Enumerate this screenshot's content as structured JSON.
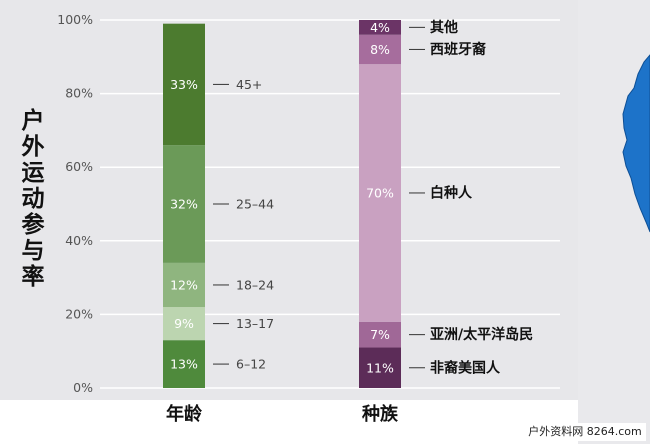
{
  "chart_data": {
    "type": "bar",
    "stacked": true,
    "normalized": true,
    "ylabel": "户外运动参与率",
    "yticks": [
      "0%",
      "20%",
      "40%",
      "60%",
      "80%",
      "100%"
    ],
    "ylim": [
      0,
      100
    ],
    "grid": true,
    "bars": [
      {
        "category": "年龄",
        "segments": [
          {
            "label": "6–12",
            "value": 13,
            "value_label": "13%",
            "color": "#4f8a3c"
          },
          {
            "label": "13–17",
            "value": 9,
            "value_label": "9%",
            "color": "#bcd5b0"
          },
          {
            "label": "18–24",
            "value": 12,
            "value_label": "12%",
            "color": "#8fb57f"
          },
          {
            "label": "25–44",
            "value": 32,
            "value_label": "32%",
            "color": "#6b9a58"
          },
          {
            "label": "45+",
            "value": 33,
            "value_label": "33%",
            "color": "#4c7b2f"
          }
        ]
      },
      {
        "category": "种族",
        "segments": [
          {
            "label": "非裔美国人",
            "value": 11,
            "value_label": "11%",
            "color": "#5c2c58"
          },
          {
            "label": "亚洲/太平洋岛民",
            "value": 7,
            "value_label": "7%",
            "color": "#a06897"
          },
          {
            "label": "白种人",
            "value": 70,
            "value_label": "70%",
            "color": "#c9a1c1"
          },
          {
            "label": "西班牙裔",
            "value": 8,
            "value_label": "8%",
            "color": "#a66d9d"
          },
          {
            "label": "其他",
            "value": 4,
            "value_label": "4%",
            "color": "#6b3466"
          }
        ]
      }
    ]
  },
  "colors": {
    "plot_background": "#e7e7ea",
    "gridline": "#ffffff",
    "tick_text": "#555555",
    "label_text": "#444444",
    "right_panel": "#e9e9ec",
    "map_accent": "#1d73c9"
  },
  "footer": {
    "watermark": "户外资料网 8264.com"
  }
}
